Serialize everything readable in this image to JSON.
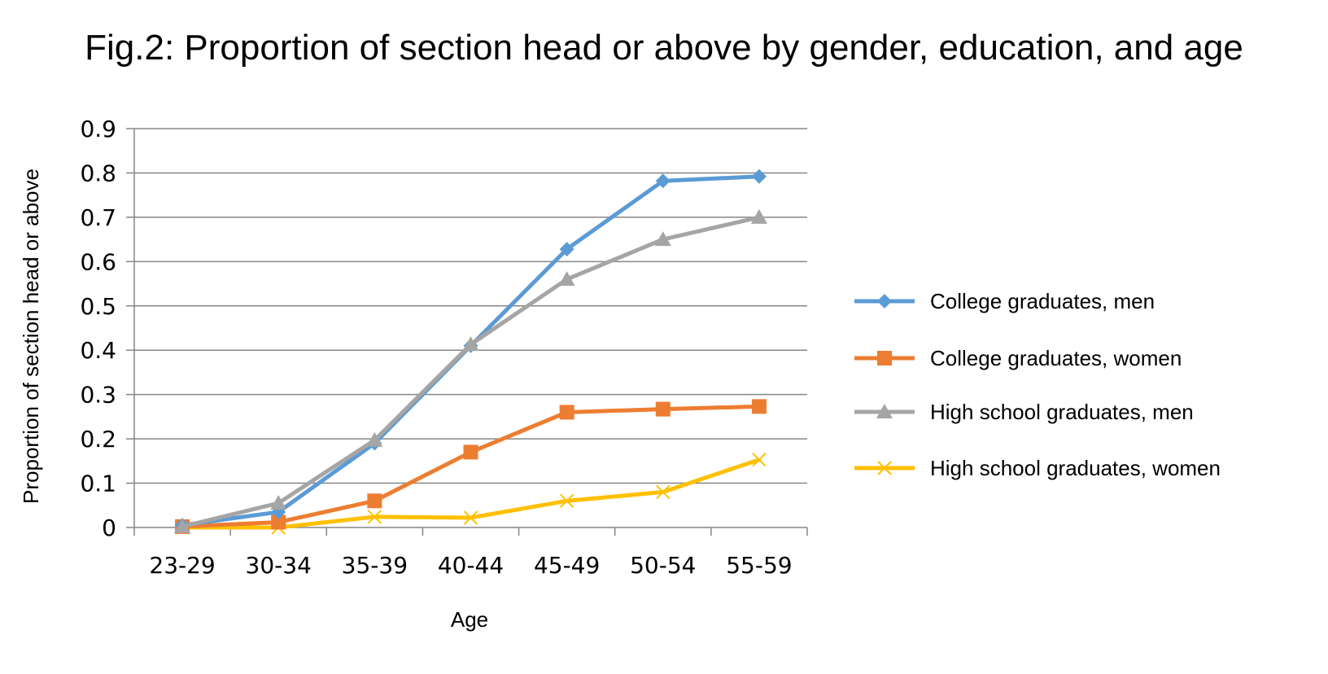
{
  "chart_data": {
    "type": "line",
    "title": "Fig.2: Proportion of section head or above by gender, education, and age",
    "xlabel": "Age",
    "ylabel": "Proportion of section head or above",
    "categories": [
      "23-29",
      "30-34",
      "35-39",
      "40-44",
      "45-49",
      "50-54",
      "55-59"
    ],
    "ylim": [
      0,
      0.9
    ],
    "yticks": [
      "0",
      "0.1",
      "0.2",
      "0.3",
      "0.4",
      "0.5",
      "0.6",
      "0.7",
      "0.8",
      "0.9"
    ],
    "grid": true,
    "legend_position": "right",
    "series": [
      {
        "name": "College graduates, men",
        "color": "#5B9BD5",
        "marker": "diamond",
        "values": [
          0.005,
          0.035,
          0.19,
          0.41,
          0.628,
          0.782,
          0.792
        ]
      },
      {
        "name": "College graduates, women",
        "color": "#ED7D31",
        "marker": "square",
        "values": [
          0.002,
          0.012,
          0.06,
          0.17,
          0.26,
          0.267,
          0.273
        ]
      },
      {
        "name": "High school graduates, men",
        "color": "#A5A5A5",
        "marker": "triangle",
        "values": [
          0.002,
          0.055,
          0.197,
          0.413,
          0.56,
          0.65,
          0.7
        ]
      },
      {
        "name": "High school graduates, women",
        "color": "#FFC000",
        "marker": "x",
        "values": [
          0.0,
          0.0,
          0.024,
          0.022,
          0.06,
          0.08,
          0.153
        ]
      }
    ]
  }
}
